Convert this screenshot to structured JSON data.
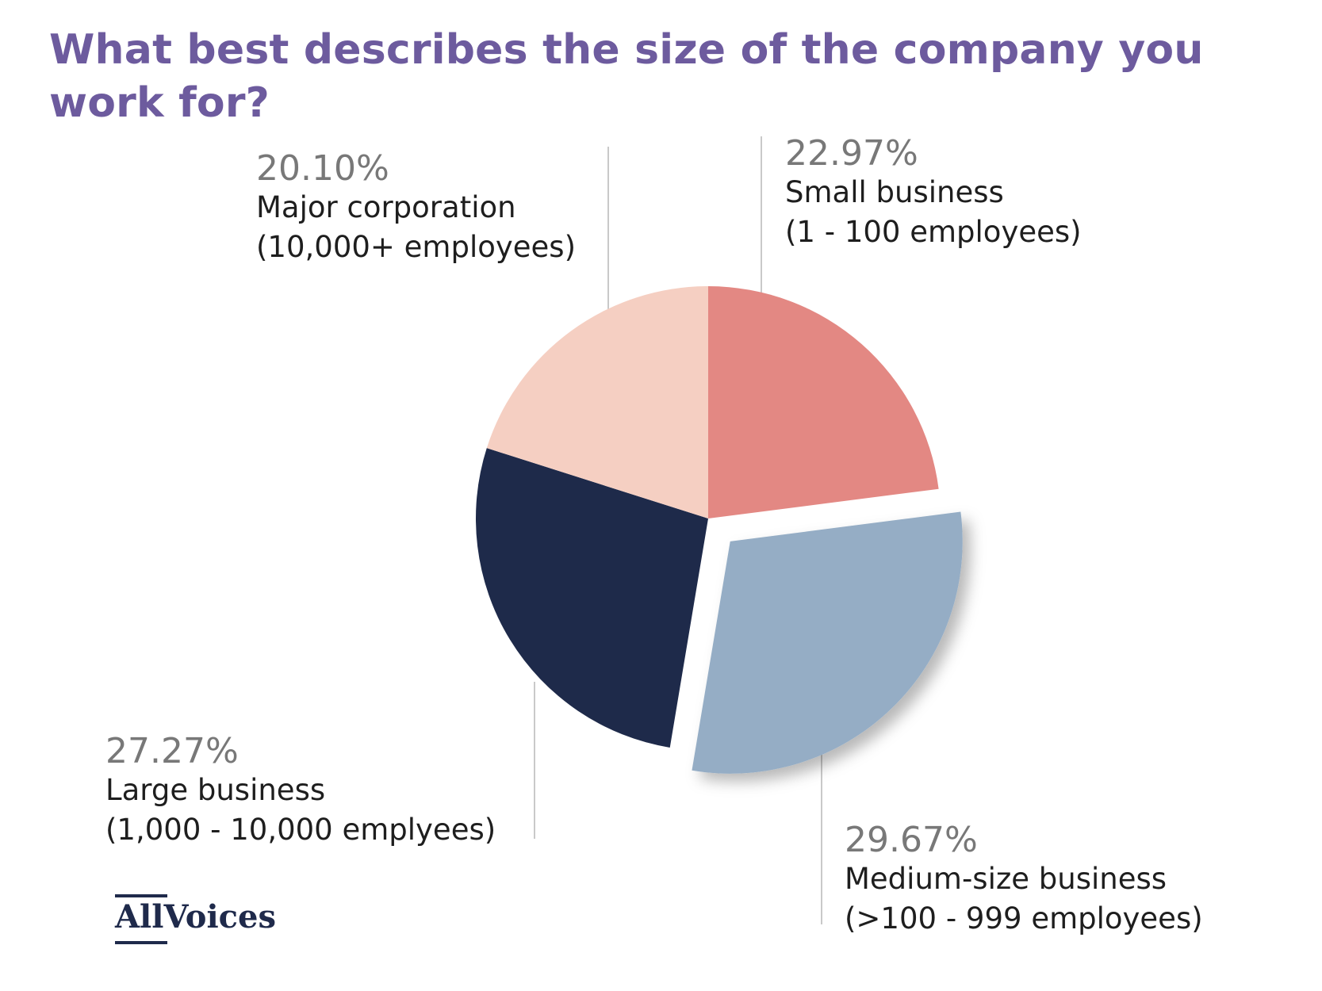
{
  "chart_data": {
    "type": "pie",
    "title": "What best describes the size of the company you work for?",
    "slices": [
      {
        "pct_label": "22.97%",
        "value": 22.97,
        "name": "Small business",
        "detail": "(1 - 100 employees)",
        "color": "#e38883",
        "exploded": false
      },
      {
        "pct_label": "29.67%",
        "value": 29.67,
        "name": "Medium-size business",
        "detail": "(>100 - 999 employees)",
        "color": "#95adc5",
        "exploded": true
      },
      {
        "pct_label": "27.27%",
        "value": 27.27,
        "name": "Large business",
        "detail": "(1,000 - 10,000 emplyees)",
        "color": "#1e2a4a",
        "exploded": false
      },
      {
        "pct_label": "20.10%",
        "value": 20.1,
        "name": "Major corporation",
        "detail": "(10,000+ employees)",
        "color": "#f5cfc2",
        "exploded": false
      }
    ]
  },
  "logo": {
    "text_all": "All",
    "text_voices": "Voices",
    "color": "#1f2a4b"
  }
}
